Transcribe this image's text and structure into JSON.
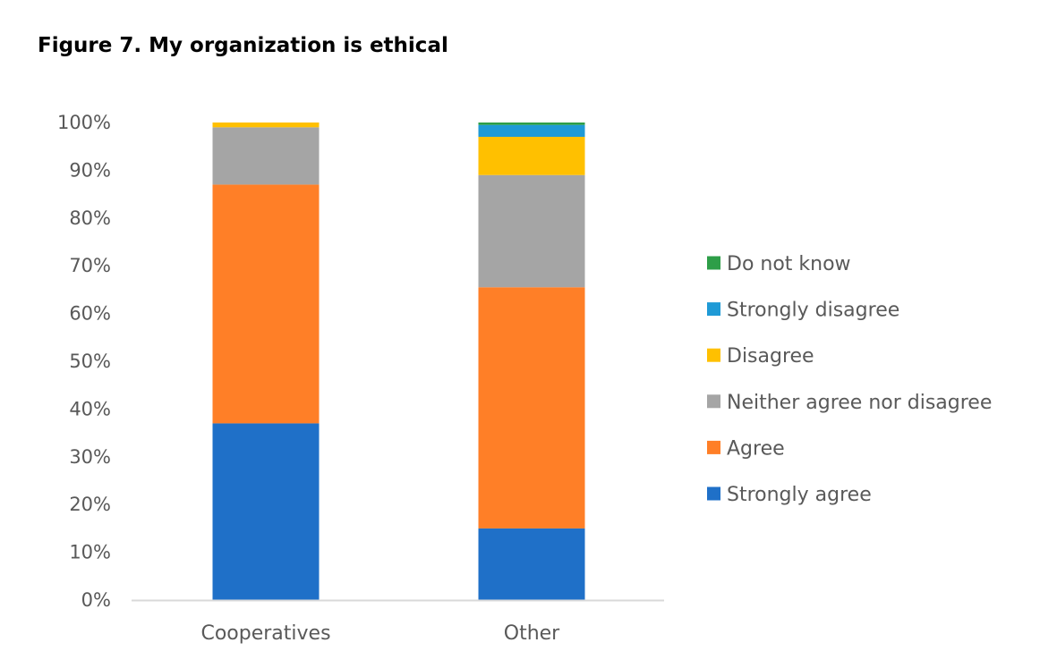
{
  "chart_data": {
    "type": "bar",
    "stacked": true,
    "title": "Figure 7. My organization is ethical",
    "xlabel": "",
    "ylabel": "",
    "ylim": [
      0,
      100
    ],
    "y_ticks": [
      "0%",
      "10%",
      "20%",
      "30%",
      "40%",
      "50%",
      "60%",
      "70%",
      "80%",
      "90%",
      "100%"
    ],
    "categories": [
      "Cooperatives",
      "Other"
    ],
    "series": [
      {
        "name": "Strongly agree",
        "color": "#1F70C8",
        "values": [
          37,
          15
        ]
      },
      {
        "name": "Agree",
        "color": "#FF7F27",
        "values": [
          50,
          50.5
        ]
      },
      {
        "name": "Neither agree nor disagree",
        "color": "#A5A5A5",
        "values": [
          12,
          23.5
        ]
      },
      {
        "name": "Disagree",
        "color": "#FFC000",
        "values": [
          1,
          8
        ]
      },
      {
        "name": "Strongly disagree",
        "color": "#1F9AD6",
        "values": [
          0,
          2.5
        ]
      },
      {
        "name": "Do not know",
        "color": "#2E9E48",
        "values": [
          0,
          0.5
        ]
      }
    ],
    "grid": false,
    "legend_position": "right",
    "axis_color": "#D9D9D9"
  }
}
